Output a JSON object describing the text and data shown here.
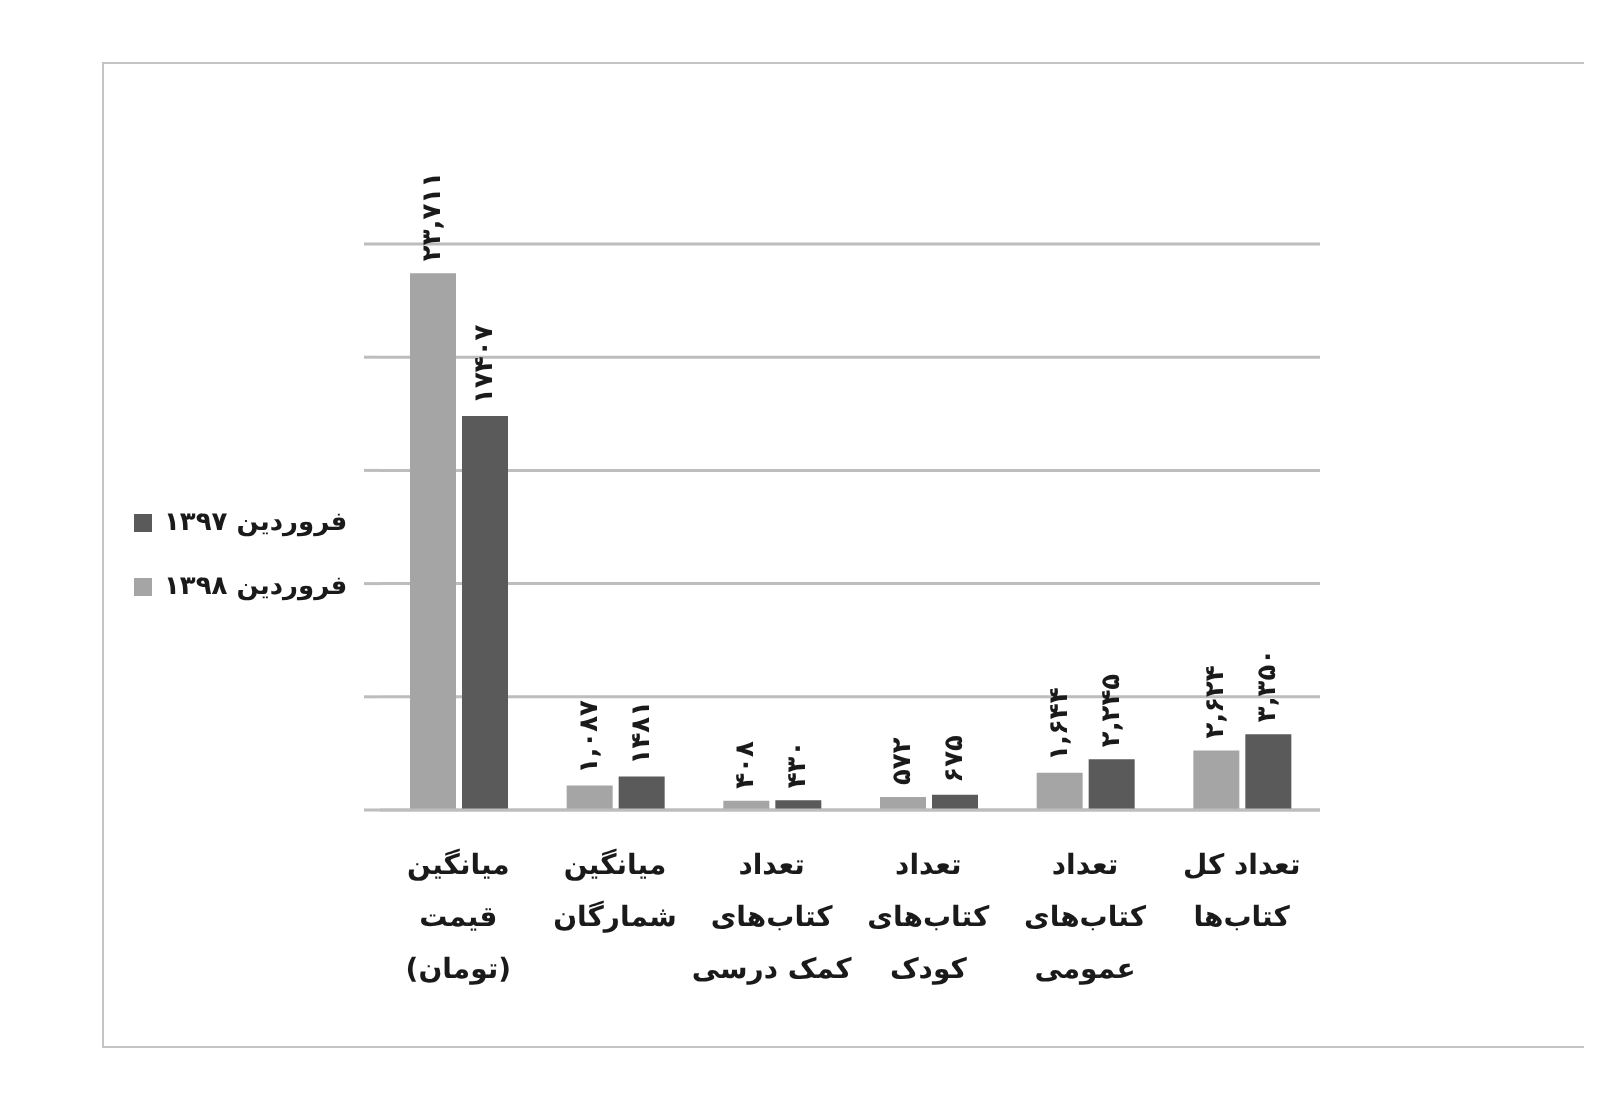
{
  "chart_data": {
    "type": "bar",
    "categories": [
      "میانگین قیمت (تومان)",
      "میانگین شمارگان",
      "تعداد کتاب‌های کمک درسی",
      "تعداد کتاب‌های کودک",
      "تعداد کتاب‌های عمومی",
      "تعداد کل کتاب‌ها"
    ],
    "series": [
      {
        "name": "فروردین ۱۳۹۸",
        "color": "#a5a5a5",
        "values": [
          23711,
          1087,
          408,
          572,
          1644,
          2624
        ],
        "value_labels": [
          "۲۳,۷۱۱",
          "۱,۰۸۷",
          "۴۰۸",
          "۵۷۲",
          "۱,۶۴۴",
          "۲,۶۲۴"
        ]
      },
      {
        "name": "فروردین ۱۳۹۷",
        "color": "#5a5a5a",
        "values": [
          17407,
          1481,
          430,
          675,
          2245,
          3350
        ],
        "value_labels": [
          "۱۷۴۰۷",
          "۱۴۸۱",
          "۴۳۰",
          "۶۷۵",
          "۲,۲۴۵",
          "۳,۳۵۰"
        ]
      }
    ],
    "ylim": [
      0,
      25000
    ],
    "yticks": [
      {
        "value": 0,
        "label": null
      },
      {
        "value": 5000,
        "label": null
      },
      {
        "value": 10000,
        "label": null
      },
      {
        "value": 15000,
        "label": null
      },
      {
        "value": 20000,
        "label": null
      },
      {
        "value": 25000,
        "label": null
      }
    ],
    "grid": "y",
    "legend": "left",
    "tick_labels": "x"
  }
}
